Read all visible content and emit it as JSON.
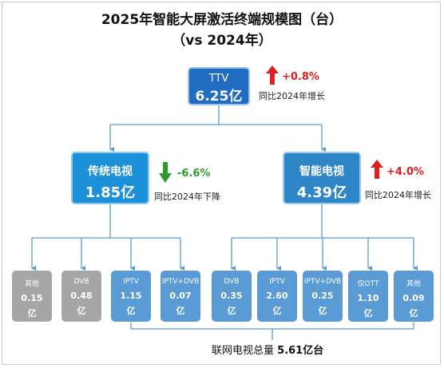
{
  "title_line1": "2025年智能大屏激活终端规模图（台）",
  "title_line2": "（vs 2024年）",
  "top": {
    "name": "TTV",
    "value": "6.25亿",
    "change": "+0.8%",
    "note": "同比2024年增长",
    "color": "#e02020"
  },
  "left": {
    "name": "传统电视",
    "value": "1.85亿",
    "change": "-6.6%",
    "note": "同比2024年下降",
    "color": "#2e9a2e"
  },
  "right": {
    "name": "智能电视",
    "value": "4.39亿",
    "change": "+4.0%",
    "note": "同比2024年增长",
    "color": "#e02020"
  },
  "leaves": [
    {
      "name": "其他",
      "value": "0.15",
      "unit": "亿",
      "style": "grey"
    },
    {
      "name": "DVB",
      "value": "0.48",
      "unit": "亿",
      "style": "grey"
    },
    {
      "name": "IPTV",
      "value": "1.15",
      "unit": "亿",
      "style": "blue"
    },
    {
      "name": "IPTV+DVB",
      "value": "0.07",
      "unit": "亿",
      "style": "blue"
    },
    {
      "name": "DVB",
      "value": "0.35",
      "unit": "亿",
      "style": "blue"
    },
    {
      "name": "IPTV",
      "value": "2.60",
      "unit": "亿",
      "style": "blue"
    },
    {
      "name": "IPTV+DVB",
      "value": "0.25",
      "unit": "亿",
      "style": "blue"
    },
    {
      "name": "仅OTT",
      "value": "1.10",
      "unit": "亿",
      "style": "blue"
    },
    {
      "name": "其他",
      "value": "0.09",
      "unit": "亿",
      "style": "blue"
    }
  ],
  "total": {
    "label": "联网电视总量",
    "value": "5.61亿台"
  }
}
